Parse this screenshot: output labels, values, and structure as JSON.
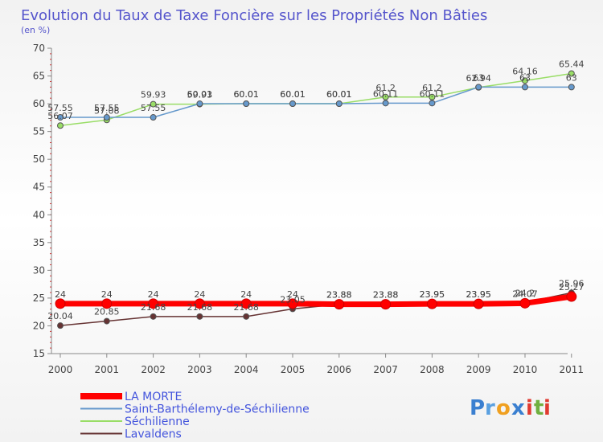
{
  "chart_data": {
    "type": "line",
    "title": "Evolution du Taux de Taxe Foncière sur les Propriétés Non Bâties",
    "ylabel": "(en %)",
    "xlabel": "",
    "x": [
      "2000",
      "2001",
      "2002",
      "2003",
      "2004",
      "2005",
      "2006",
      "2007",
      "2008",
      "2009",
      "2010",
      "2011"
    ],
    "ylim": [
      15,
      70
    ],
    "yticks": [
      15,
      20,
      25,
      30,
      35,
      40,
      45,
      50,
      55,
      60,
      65,
      70
    ],
    "grid": false,
    "legend_position": "bottom-left",
    "series": [
      {
        "name": "LA MORTE",
        "color": "#ff0000",
        "values": [
          24,
          24,
          24,
          24,
          24,
          24,
          23.88,
          23.88,
          23.95,
          23.95,
          24.07,
          25.27
        ],
        "labels": [
          "24",
          "24",
          "24",
          "24",
          "24",
          "24",
          "23.88",
          "23.88",
          "23.95",
          "23.95",
          "24.07",
          "25.27"
        ]
      },
      {
        "name": "Saint-Barthélemy-de-Séchilienne",
        "color": "#6699cc",
        "values": [
          57.55,
          57.55,
          57.55,
          60.01,
          60.01,
          60.01,
          60.01,
          60.11,
          60.11,
          63,
          63,
          63
        ],
        "labels": [
          "57.55",
          "57.55",
          "57.55",
          "60.01",
          "60.01",
          "60.01",
          "60.01",
          "60.11",
          "60.11",
          "63",
          "63",
          "63"
        ]
      },
      {
        "name": "Séchilienne",
        "color": "#99dd66",
        "values": [
          56.07,
          57.08,
          59.93,
          59.93,
          60.01,
          60.01,
          60.01,
          61.2,
          61.2,
          62.94,
          64.16,
          65.44
        ],
        "labels": [
          "56.07",
          "57.08",
          "59.93",
          "59.93",
          "60.01",
          "60.01",
          "60.01",
          "61.2",
          "61.2",
          "62.94",
          "64.16",
          "65.44"
        ]
      },
      {
        "name": "Lavaldens",
        "color": "#663333",
        "values": [
          20.04,
          20.85,
          21.68,
          21.68,
          21.68,
          23.05,
          23.88,
          23.88,
          23.95,
          23.95,
          24.2,
          25.96
        ],
        "labels": [
          "20.04",
          "20.85",
          "21.68",
          "21.68",
          "21.68",
          "23.05",
          "23.88",
          "23.88",
          "23.95",
          "23.95",
          "24.2",
          "25.96"
        ]
      }
    ]
  },
  "branding": {
    "logo_text": "Proxiti"
  },
  "colors": {
    "title": "#5555cc",
    "legend_text": "#4455dd",
    "axis": "#888888"
  }
}
